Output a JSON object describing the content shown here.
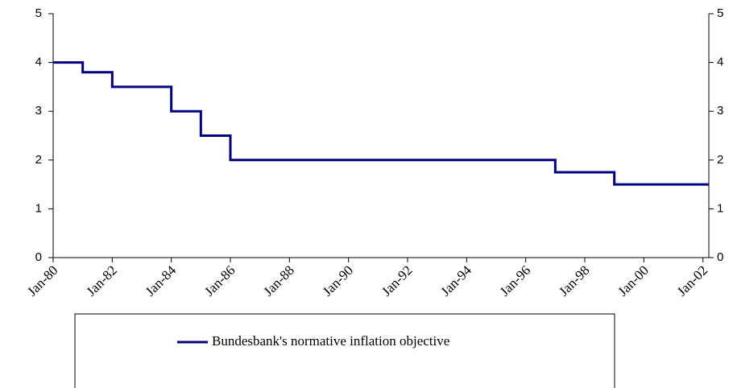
{
  "chart_data": {
    "type": "line",
    "step": true,
    "x": [
      1980,
      1981,
      1981,
      1982,
      1982,
      1984,
      1984,
      1985,
      1985,
      1986,
      1986,
      1997,
      1997,
      1999,
      1999,
      2002.2
    ],
    "series": [
      {
        "name": "Bundesbank's normative inflation objective",
        "color": "#000080",
        "values": [
          4,
          4,
          3.8,
          3.8,
          3.5,
          3.5,
          3,
          3,
          2.5,
          2.5,
          2,
          2,
          1.75,
          1.75,
          1.5,
          1.5
        ]
      }
    ],
    "xlim": [
      1980,
      2002.2
    ],
    "xticks": [
      {
        "value": 1980,
        "label": "Jan-80"
      },
      {
        "value": 1982,
        "label": "Jan-82"
      },
      {
        "value": 1984,
        "label": "Jan-84"
      },
      {
        "value": 1986,
        "label": "Jan-86"
      },
      {
        "value": 1988,
        "label": "Jan-88"
      },
      {
        "value": 1990,
        "label": "Jan-90"
      },
      {
        "value": 1992,
        "label": "Jan-92"
      },
      {
        "value": 1994,
        "label": "Jan-94"
      },
      {
        "value": 1996,
        "label": "Jan-96"
      },
      {
        "value": 1998,
        "label": "Jan-98"
      },
      {
        "value": 2000,
        "label": "Jan-00"
      },
      {
        "value": 2002,
        "label": "Jan-02"
      }
    ],
    "ylim": [
      0,
      5
    ],
    "yticks": [
      0,
      1,
      2,
      3,
      4,
      5
    ],
    "y2lim": [
      0,
      5
    ],
    "y2ticks": [
      0,
      1,
      2,
      3,
      4,
      5
    ],
    "grid": false,
    "legend": "bottom"
  }
}
